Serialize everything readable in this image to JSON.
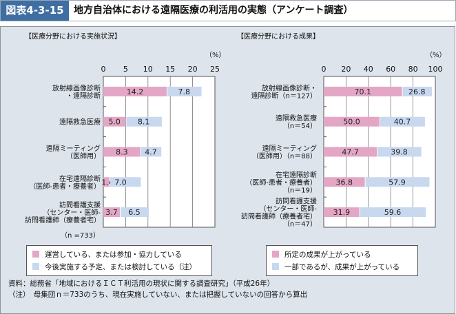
{
  "header": {
    "figure_number": "図表4-3-15",
    "title": "地方自治体における遠隔医療の利活用の実態（アンケート調査）"
  },
  "colors": {
    "pink": "#e3a7c5",
    "blue": "#c8d8ef",
    "title_bg": "#3f6ea3"
  },
  "chart_data": [
    {
      "type": "bar",
      "orientation": "horizontal",
      "stacked": true,
      "title": "【医療分野における実施状況】",
      "unit_label": "（%）",
      "xlim": [
        0,
        25
      ],
      "ticks": [
        "0",
        "5",
        "10",
        "15",
        "20",
        "25"
      ],
      "tick_values": [
        0,
        5,
        10,
        15,
        20,
        25
      ],
      "categories": [
        [
          "放射線画像診断",
          "・遠隔診断"
        ],
        [
          "遠隔救急医療"
        ],
        [
          "遠隔ミーティング",
          "（医師用）"
        ],
        [
          "在宅遠隔診断",
          "（医師-患者・療養者）"
        ],
        [
          "訪問看護支援",
          "（センター・医師-",
          "訪問看護師（療養者宅）"
        ]
      ],
      "series": [
        {
          "name": "運営している、または参加・協力している",
          "values": [
            14.2,
            5.0,
            8.3,
            1.4,
            3.7
          ],
          "labels": [
            "14.2",
            "5.0",
            "8.3",
            "1.4",
            "3.7"
          ]
        },
        {
          "name": "今後実施する予定、または検討している（注）",
          "values": [
            7.8,
            8.1,
            4.7,
            7.0,
            6.5
          ],
          "labels": [
            "7.8",
            "8.1",
            "4.7",
            "7.0",
            "6.5"
          ]
        }
      ],
      "footnote": "（n =733）"
    },
    {
      "type": "bar",
      "orientation": "horizontal",
      "stacked": true,
      "title": "【医療分野における成果】",
      "unit_label": "（%）",
      "xlim": [
        0,
        100
      ],
      "ticks": [
        "0",
        "20",
        "40",
        "60",
        "80",
        "100"
      ],
      "tick_values": [
        0,
        20,
        40,
        60,
        80,
        100
      ],
      "categories": [
        [
          "放射線画像診断・",
          "遠隔診断（n＝127）"
        ],
        [
          "遠隔救急医療",
          "（n＝54）"
        ],
        [
          "遠隔ミーティング",
          "（医師用）（n＝88）"
        ],
        [
          "在宅遠隔診断",
          "（医師-患者・療養者）",
          "（n＝19）"
        ],
        [
          "訪問看護支援",
          "（センター・医師-",
          "訪問看護師（療養者宅）",
          "（n＝47）"
        ]
      ],
      "series": [
        {
          "name": "所定の成果が上がっている",
          "values": [
            70.1,
            50.0,
            47.7,
            36.8,
            31.9
          ],
          "labels": [
            "70.1",
            "50.0",
            "47.7",
            "36.8",
            "31.9"
          ]
        },
        {
          "name": "一部であるが、成果が上がっている",
          "values": [
            26.8,
            40.7,
            39.8,
            57.9,
            59.6
          ],
          "labels": [
            "26.8",
            "40.7",
            "39.8",
            "57.9",
            "59.6"
          ]
        }
      ]
    }
  ],
  "notes": {
    "source": "資料：総務省「地域におけるＩＣＴ利活用の現状に関する調査研究」（平成26年）",
    "note": "（注）　母集団ｎ＝733のうち、現在実施していない、または把握していないの回答から算出"
  }
}
